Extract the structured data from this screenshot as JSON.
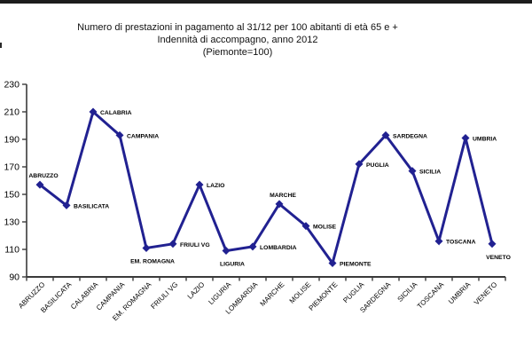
{
  "title": {
    "line1": "Numero di prestazioni in pagamento al 31/12 per 100 abitanti di età 65 e +",
    "line2": "Indennità di accompagno, anno 2012",
    "line3": "(Piemonte=100)"
  },
  "chart_data": {
    "type": "line",
    "title": "Numero di prestazioni in pagamento al 31/12 per 100 abitanti di età 65 e + Indennità di accompagno, anno 2012 (Piemonte=100)",
    "categories": [
      "ABRUZZO",
      "BASILICATA",
      "CALABRIA",
      "CAMPANIA",
      "EM. ROMAGNA",
      "FRIULI VG",
      "LAZIO",
      "LIGURIA",
      "LOMBARDIA",
      "MARCHE",
      "MOLISE",
      "PIEMONTE",
      "PUGLIA",
      "SARDEGNA",
      "SICILIA",
      "TOSCANA",
      "UMBRIA",
      "VENETO"
    ],
    "values": [
      157,
      142,
      210,
      193,
      111,
      114,
      157,
      109,
      112,
      143,
      127,
      100,
      172,
      193,
      167,
      116,
      191,
      114
    ],
    "point_labels": [
      "ABRUZZO",
      "BASILICATA",
      "CALABRIA",
      "CAMPANIA",
      "EM. ROMAGNA",
      "FRIULI VG",
      "LAZIO",
      "LIGURIA",
      "LOMBARDIA",
      "MARCHE",
      "MOLISE",
      "PIEMONTE",
      "PUGLIA",
      "SARDEGNA",
      "SICILIA",
      "TOSCANA",
      "UMBRIA",
      "VENETO"
    ],
    "label_positions": [
      "above",
      "right",
      "right",
      "right",
      "below",
      "right",
      "right",
      "below",
      "right",
      "above",
      "right",
      "right",
      "right",
      "right",
      "right",
      "right",
      "right",
      "below"
    ],
    "xlabel": "",
    "ylabel": "",
    "ylim": [
      90,
      230
    ],
    "yticks": [
      90,
      110,
      130,
      150,
      170,
      190,
      210,
      230
    ],
    "grid": false,
    "legend": "none",
    "marker": "diamond",
    "line_color": "#212191",
    "axis_color": "#3a3a3a",
    "label_color": "#000000"
  }
}
